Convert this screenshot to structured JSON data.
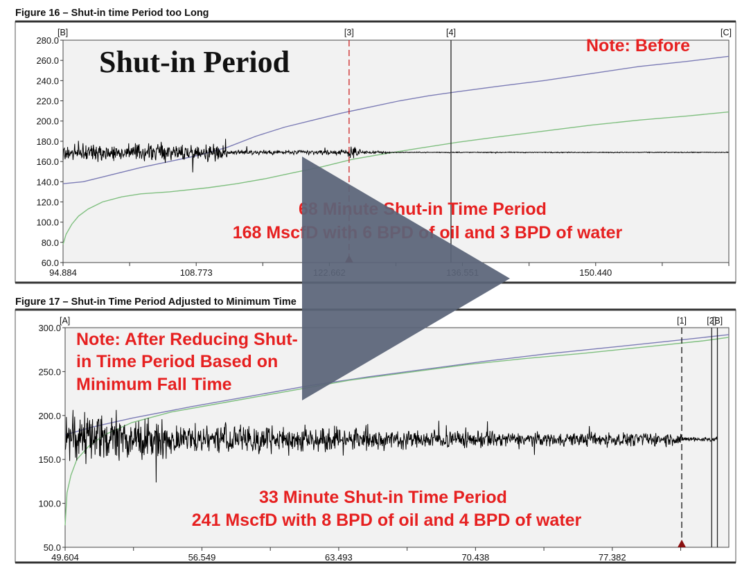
{
  "figures": [
    {
      "title": "Figure 16 – Shut-in time Period too Long"
    },
    {
      "title": "Figure 17 – Shut-in Time Period Adjusted to Minimum Time"
    }
  ],
  "chart_data": [
    {
      "type": "line",
      "title": "",
      "xlim": [
        94.884,
        164.33
      ],
      "ylim": [
        60,
        280
      ],
      "xticks": [
        "94.884",
        "108.773",
        "122.662",
        "136.551",
        "150.440"
      ],
      "xtick_values": [
        94.884,
        108.773,
        122.662,
        136.551,
        150.44
      ],
      "yticks": [
        "280.0",
        "260.0",
        "240.0",
        "220.0",
        "200.0",
        "180.0",
        "160.0",
        "140.0",
        "120.0",
        "100.0",
        "80.0",
        "60.0"
      ],
      "ytick_values": [
        280,
        260,
        240,
        220,
        200,
        180,
        160,
        140,
        120,
        100,
        80,
        60
      ],
      "cursors": [
        {
          "label": "[B]",
          "x": 94.884,
          "style": "none"
        },
        {
          "label": "[3]",
          "x": 124.72,
          "style": "dashed-red"
        },
        {
          "label": "[4]",
          "x": 135.35,
          "style": "solid"
        },
        {
          "label": "[C]",
          "x": 164.33,
          "style": "none"
        }
      ],
      "series": [
        {
          "color": "#7b7bb5",
          "points": [
            [
              94.884,
              138
            ],
            [
              97,
              140
            ],
            [
              100,
              147
            ],
            [
              103,
              154
            ],
            [
              106,
              160
            ],
            [
              109,
              166
            ],
            [
              112,
              174
            ],
            [
              115,
              185
            ],
            [
              118,
              194
            ],
            [
              121,
              201
            ],
            [
              124,
              208
            ],
            [
              127,
              214
            ],
            [
              130,
              220
            ],
            [
              133,
              225
            ],
            [
              136,
              229
            ],
            [
              140,
              234
            ],
            [
              145,
              240
            ],
            [
              150,
              247
            ],
            [
              155,
              254
            ],
            [
              160,
              259
            ],
            [
              164.33,
              264
            ]
          ]
        },
        {
          "color": "#7fbf7f",
          "points": [
            [
              94.884,
              78
            ],
            [
              95.2,
              88
            ],
            [
              95.8,
              98
            ],
            [
              96.5,
              106
            ],
            [
              97.5,
              113
            ],
            [
              99,
              120
            ],
            [
              101,
              125
            ],
            [
              103,
              128
            ],
            [
              106,
              130
            ],
            [
              110,
              134
            ],
            [
              113,
              138
            ],
            [
              116,
              143
            ],
            [
              119,
              149
            ],
            [
              122,
              155
            ],
            [
              125,
              162
            ],
            [
              128,
              167
            ],
            [
              132,
              173
            ],
            [
              136,
              179
            ],
            [
              140,
              184
            ],
            [
              145,
              190
            ],
            [
              150,
              196
            ],
            [
              155,
              201
            ],
            [
              160,
              205
            ],
            [
              164.33,
              209
            ]
          ]
        },
        {
          "color": "#000000",
          "noisy": true,
          "baseline": 169,
          "segments": [
            [
              94.884,
              112,
              12
            ],
            [
              112,
              124.5,
              3.5
            ],
            [
              124.5,
              126,
              7
            ],
            [
              126,
              129,
              2
            ],
            [
              129,
              164.33,
              0.6
            ]
          ]
        }
      ],
      "annotations": [
        {
          "text": "Shut-in Period",
          "style": "big-black"
        },
        {
          "text": "Note: Before",
          "style": "red"
        },
        {
          "text": "68 Minute Shut-in Time Period",
          "style": "red"
        },
        {
          "text": "168 MscfD  with 6 BPD of oil and 3 BPD of water",
          "style": "red"
        }
      ]
    },
    {
      "type": "line",
      "title": "",
      "xlim": [
        49.604,
        83.3
      ],
      "ylim": [
        50,
        300
      ],
      "xticks": [
        "49.604",
        "56.549",
        "63.493",
        "70.438",
        "77.382"
      ],
      "xtick_values": [
        49.604,
        56.549,
        63.493,
        70.438,
        77.382
      ],
      "yticks": [
        "300.0",
        "250.0",
        "200.0",
        "150.0",
        "100.0",
        "50.0"
      ],
      "ytick_values": [
        300,
        250,
        200,
        150,
        100,
        50
      ],
      "cursors": [
        {
          "label": "[A]",
          "x": 49.604,
          "style": "none"
        },
        {
          "label": "[1]",
          "x": 80.91,
          "style": "dashed-black"
        },
        {
          "label": "[2]",
          "x": 82.43,
          "style": "solid"
        },
        {
          "label": "[B]",
          "x": 82.72,
          "style": "solid"
        }
      ],
      "series": [
        {
          "color": "#7b7bb5",
          "points": [
            [
              49.604,
              178
            ],
            [
              51,
              187
            ],
            [
              53,
              197
            ],
            [
              56,
              210
            ],
            [
              59,
              222
            ],
            [
              62,
              234
            ],
            [
              65,
              244
            ],
            [
              68,
              253
            ],
            [
              71,
              262
            ],
            [
              74,
              270
            ],
            [
              77,
              277
            ],
            [
              80,
              284
            ],
            [
              83.3,
              292
            ]
          ]
        },
        {
          "color": "#7fbf7f",
          "points": [
            [
              49.604,
              75
            ],
            [
              49.7,
              112
            ],
            [
              49.9,
              132
            ],
            [
              50.2,
              150
            ],
            [
              50.8,
              165
            ],
            [
              51.6,
              178
            ],
            [
              53,
              192
            ],
            [
              55,
              204
            ],
            [
              58,
              216
            ],
            [
              61,
              228
            ],
            [
              64,
              240
            ],
            [
              67,
              249
            ],
            [
              70,
              258
            ],
            [
              73,
              265
            ],
            [
              76,
              271
            ],
            [
              79,
              278
            ],
            [
              82,
              285
            ],
            [
              83.3,
              289
            ]
          ]
        },
        {
          "color": "#000000",
          "noisy": true,
          "baseline": 173,
          "segments": [
            [
              49.604,
              51.5,
              42
            ],
            [
              51.5,
              55,
              32
            ],
            [
              55,
              60,
              24
            ],
            [
              60,
              66,
              19
            ],
            [
              66,
              72,
              15
            ],
            [
              72,
              80.9,
              11
            ],
            [
              80.9,
              82.7,
              4
            ]
          ]
        }
      ],
      "annotations": [
        {
          "text": "Note: After Reducing Shut-",
          "style": "red"
        },
        {
          "text": "in Time Period Based on",
          "style": "red"
        },
        {
          "text": "Minimum Fall Time",
          "style": "red"
        },
        {
          "text": "33 Minute Shut-in Time Period",
          "style": "red"
        },
        {
          "text": "241 MscfD  with 8 BPD of oil and 4 BPD of water",
          "style": "red"
        }
      ]
    }
  ],
  "video_overlay": {
    "icon": "play-icon",
    "color": "#5a6478"
  }
}
